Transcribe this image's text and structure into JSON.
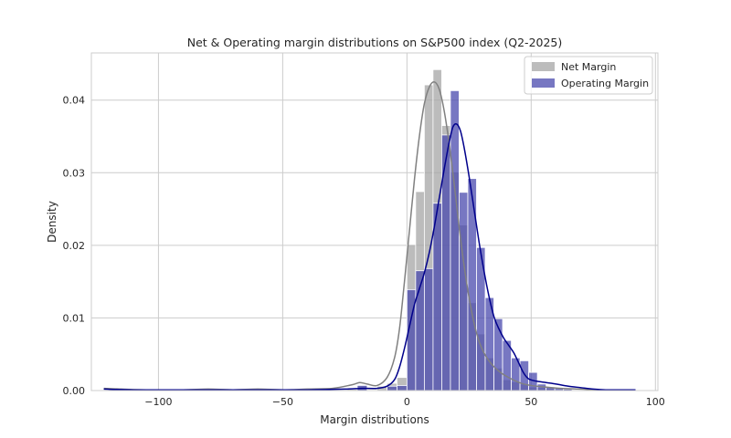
{
  "chart_data": {
    "type": "histogram",
    "title": "Net & Operating margin distributions on S&P500 index (Q2-2025)",
    "xlabel": "Margin distributions",
    "ylabel": "Density",
    "xlim": [
      -127,
      101
    ],
    "ylim": [
      0,
      0.0465
    ],
    "x_ticks": [
      -100,
      -50,
      0,
      50,
      100
    ],
    "x_tick_labels": [
      "−100",
      "−50",
      "0",
      "50",
      "100"
    ],
    "y_ticks": [
      0.0,
      0.01,
      0.02,
      0.03,
      0.04
    ],
    "y_tick_labels": [
      "0.00",
      "0.01",
      "0.02",
      "0.03",
      "0.04"
    ],
    "grid": true,
    "legend_position": "top-right",
    "colors": {
      "net_bar": "#a6a6a6",
      "net_kde": "#808080",
      "op_bar": "#4a4aad",
      "op_kde": "#00008b",
      "grid": "#cccccc",
      "frame": "#cccccc"
    },
    "series": [
      {
        "name": "Net Margin",
        "bins": [
          [
            -120,
            -112,
            0.0003
          ],
          [
            -112,
            -104,
            0.0001
          ],
          [
            -88,
            -80,
            0.0001
          ],
          [
            -64,
            -56,
            0.0001
          ],
          [
            -24,
            -20,
            0.0002
          ],
          [
            -20,
            -16,
            0.0007
          ],
          [
            -16,
            -12,
            0.0003
          ],
          [
            -12,
            -8,
            0.0006
          ],
          [
            -8,
            -4,
            0.001
          ],
          [
            -4,
            0,
            0.0018
          ],
          [
            0,
            3.5,
            0.0201
          ],
          [
            3.5,
            7,
            0.0274
          ],
          [
            7,
            10.5,
            0.0421
          ],
          [
            10.5,
            14,
            0.0442
          ],
          [
            14,
            17.5,
            0.0365
          ],
          [
            17.5,
            21,
            0.0301
          ],
          [
            21,
            24.5,
            0.0228
          ],
          [
            24.5,
            28,
            0.0121
          ],
          [
            28,
            31.5,
            0.0078
          ],
          [
            31.5,
            35,
            0.0045
          ],
          [
            35,
            38.5,
            0.0031
          ],
          [
            38.5,
            42,
            0.0015
          ],
          [
            42,
            45.5,
            0.0012
          ],
          [
            45.5,
            49,
            0.0009
          ],
          [
            49,
            52.5,
            0.0005
          ],
          [
            52.5,
            56,
            0.0004
          ],
          [
            56,
            59.5,
            0.0003
          ],
          [
            63,
            66.5,
            0.0003
          ]
        ],
        "kde": [
          [
            -122,
            0.0003
          ],
          [
            -115,
            0.0002
          ],
          [
            -105,
            0.0001
          ],
          [
            -90,
            0.0001
          ],
          [
            -80,
            0.0002
          ],
          [
            -70,
            0.0001
          ],
          [
            -60,
            0.0002
          ],
          [
            -50,
            0.0001
          ],
          [
            -40,
            0.0002
          ],
          [
            -30,
            0.0003
          ],
          [
            -22,
            0.0008
          ],
          [
            -19,
            0.0011
          ],
          [
            -16,
            0.0009
          ],
          [
            -12,
            0.0007
          ],
          [
            -8,
            0.0018
          ],
          [
            -5,
            0.0045
          ],
          [
            -3,
            0.0085
          ],
          [
            -1,
            0.015
          ],
          [
            1,
            0.022
          ],
          [
            3,
            0.029
          ],
          [
            5,
            0.035
          ],
          [
            7,
            0.0395
          ],
          [
            9,
            0.0418
          ],
          [
            11,
            0.0425
          ],
          [
            13,
            0.0415
          ],
          [
            15,
            0.0385
          ],
          [
            17,
            0.034
          ],
          [
            19,
            0.0285
          ],
          [
            21,
            0.0225
          ],
          [
            23,
            0.0172
          ],
          [
            25,
            0.0128
          ],
          [
            27,
            0.0093
          ],
          [
            29,
            0.0068
          ],
          [
            31,
            0.0052
          ],
          [
            33,
            0.0041
          ],
          [
            35,
            0.0033
          ],
          [
            38,
            0.0024
          ],
          [
            42,
            0.0016
          ],
          [
            46,
            0.001
          ],
          [
            50,
            0.0007
          ],
          [
            55,
            0.0005
          ],
          [
            62,
            0.0003
          ],
          [
            70,
            0.0002
          ],
          [
            78,
            0.0001
          ],
          [
            85,
            0.0001
          ]
        ]
      },
      {
        "name": "Operating Margin",
        "bins": [
          [
            -20,
            -16,
            0.0007
          ],
          [
            -16,
            -12,
            0.0001
          ],
          [
            -8,
            -4,
            0.0006
          ],
          [
            -4,
            0,
            0.0007
          ],
          [
            0,
            3.5,
            0.0139
          ],
          [
            3.5,
            7,
            0.0165
          ],
          [
            7,
            10.5,
            0.0168
          ],
          [
            10.5,
            14,
            0.0258
          ],
          [
            14,
            17.5,
            0.0352
          ],
          [
            17.5,
            21,
            0.0413
          ],
          [
            21,
            24.5,
            0.0273
          ],
          [
            24.5,
            28,
            0.0292
          ],
          [
            28,
            31.5,
            0.0197
          ],
          [
            31.5,
            35,
            0.0128
          ],
          [
            35,
            38.5,
            0.0099
          ],
          [
            38.5,
            42,
            0.0069
          ],
          [
            42,
            45.5,
            0.0045
          ],
          [
            45.5,
            49,
            0.0041
          ],
          [
            49,
            52.5,
            0.0025
          ],
          [
            52.5,
            56,
            0.0009
          ],
          [
            56,
            59.5,
            0.0005
          ],
          [
            59.5,
            63,
            0.0003
          ],
          [
            63,
            66.5,
            0.0002
          ],
          [
            66.5,
            70,
            0.0001
          ]
        ],
        "kde": [
          [
            -122,
            0.0002
          ],
          [
            -110,
            0.0001
          ],
          [
            -100,
            0.0001
          ],
          [
            -85,
            0.0001
          ],
          [
            -70,
            0.0001
          ],
          [
            -55,
            0.0001
          ],
          [
            -40,
            0.0001
          ],
          [
            -25,
            0.0002
          ],
          [
            -18,
            0.0003
          ],
          [
            -12,
            0.0003
          ],
          [
            -8,
            0.0006
          ],
          [
            -5,
            0.0015
          ],
          [
            -3,
            0.0032
          ],
          [
            -1,
            0.0058
          ],
          [
            1,
            0.0088
          ],
          [
            3,
            0.0118
          ],
          [
            5,
            0.014
          ],
          [
            7,
            0.0162
          ],
          [
            9,
            0.019
          ],
          [
            11,
            0.0225
          ],
          [
            13,
            0.0265
          ],
          [
            15,
            0.0305
          ],
          [
            17,
            0.0342
          ],
          [
            18.5,
            0.0363
          ],
          [
            20,
            0.0367
          ],
          [
            21.5,
            0.0358
          ],
          [
            23,
            0.0335
          ],
          [
            25,
            0.0295
          ],
          [
            27,
            0.025
          ],
          [
            29,
            0.0205
          ],
          [
            31,
            0.0165
          ],
          [
            33,
            0.013
          ],
          [
            35,
            0.0102
          ],
          [
            37,
            0.0085
          ],
          [
            39,
            0.0072
          ],
          [
            41,
            0.0062
          ],
          [
            43,
            0.0052
          ],
          [
            45,
            0.0038
          ],
          [
            47,
            0.0024
          ],
          [
            49,
            0.0016
          ],
          [
            52,
            0.0013
          ],
          [
            56,
            0.0011
          ],
          [
            60,
            0.0009
          ],
          [
            65,
            0.0006
          ],
          [
            70,
            0.0004
          ],
          [
            75,
            0.0002
          ],
          [
            80,
            0.0001
          ],
          [
            86,
            0.0001
          ],
          [
            92,
            0.0001
          ]
        ]
      }
    ]
  }
}
